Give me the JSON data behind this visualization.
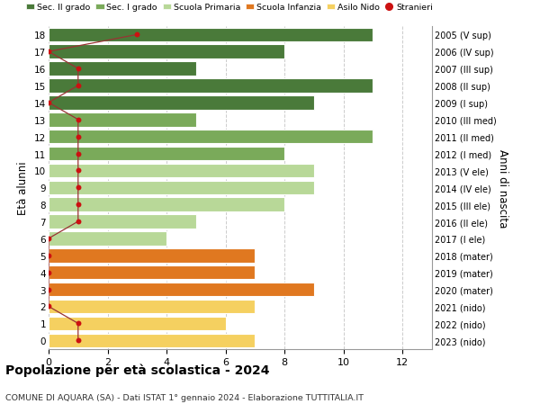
{
  "ages": [
    18,
    17,
    16,
    15,
    14,
    13,
    12,
    11,
    10,
    9,
    8,
    7,
    6,
    5,
    4,
    3,
    2,
    1,
    0
  ],
  "years": [
    "2005 (V sup)",
    "2006 (IV sup)",
    "2007 (III sup)",
    "2008 (II sup)",
    "2009 (I sup)",
    "2010 (III med)",
    "2011 (II med)",
    "2012 (I med)",
    "2013 (V ele)",
    "2014 (IV ele)",
    "2015 (III ele)",
    "2016 (II ele)",
    "2017 (I ele)",
    "2018 (mater)",
    "2019 (mater)",
    "2020 (mater)",
    "2021 (nido)",
    "2022 (nido)",
    "2023 (nido)"
  ],
  "bar_values": [
    11,
    8,
    5,
    11,
    9,
    5,
    11,
    8,
    9,
    9,
    8,
    5,
    4,
    7,
    7,
    9,
    7,
    6,
    7
  ],
  "stranieri": [
    3,
    0,
    1,
    1,
    0,
    1,
    1,
    1,
    1,
    1,
    1,
    1,
    0,
    0,
    0,
    0,
    0,
    1,
    1
  ],
  "bar_colors": [
    "#4a7a3a",
    "#4a7a3a",
    "#4a7a3a",
    "#4a7a3a",
    "#4a7a3a",
    "#7aaa5a",
    "#7aaa5a",
    "#7aaa5a",
    "#b8d898",
    "#b8d898",
    "#b8d898",
    "#b8d898",
    "#b8d898",
    "#e07820",
    "#e07820",
    "#e07820",
    "#f5d060",
    "#f5d060",
    "#f5d060"
  ],
  "legend_labels": [
    "Sec. II grado",
    "Sec. I grado",
    "Scuola Primaria",
    "Scuola Infanzia",
    "Asilo Nido",
    "Stranieri"
  ],
  "legend_colors": [
    "#4a7a3a",
    "#7aaa5a",
    "#b8d898",
    "#e07820",
    "#f5d060",
    "#cc1111"
  ],
  "title": "Popolazione per età scolastica - 2024",
  "subtitle": "COMUNE DI AQUARA (SA) - Dati ISTAT 1° gennaio 2024 - Elaborazione TUTTITALIA.IT",
  "ylabel_left": "Età alunni",
  "ylabel_right": "Anni di nascita",
  "xlim": [
    0,
    13
  ],
  "bg_color": "#ffffff",
  "grid_color": "#cccccc",
  "bar_edge_color": "#ffffff",
  "stranieri_color": "#cc1111",
  "stranieri_line_color": "#993333"
}
